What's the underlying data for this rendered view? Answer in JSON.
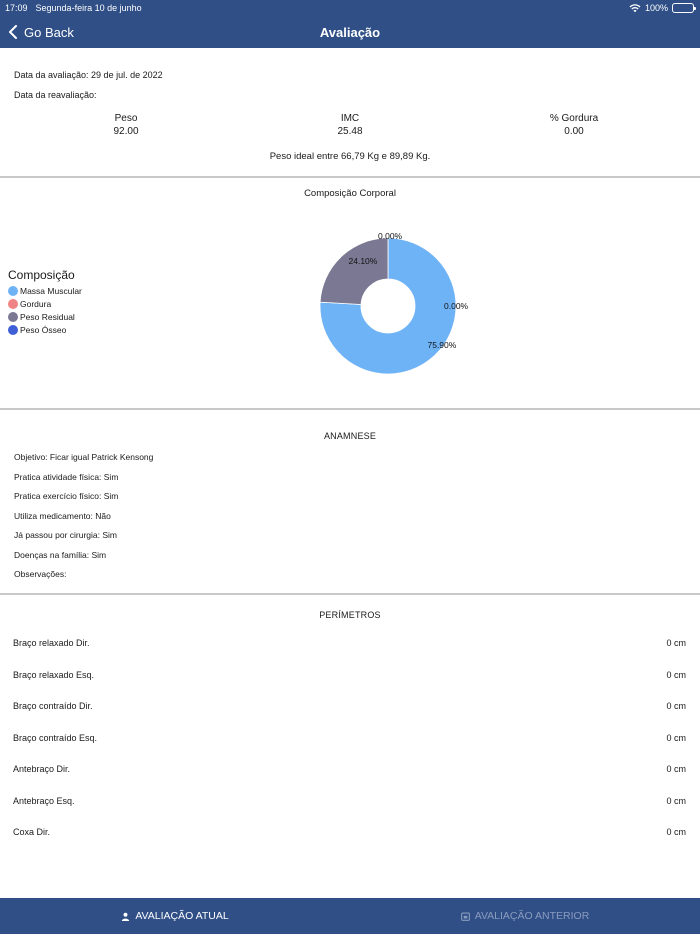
{
  "status_bar": {
    "time": "17:09",
    "date": "Segunda-feira 10 de junho",
    "battery": "100%"
  },
  "nav": {
    "back_label": "Go Back",
    "title": "Avaliação"
  },
  "summary": {
    "evaluation_date": "Data da avaliação: 29 de jul. de 2022",
    "reevaluation_date": "Data da reavaliação:",
    "metrics": [
      {
        "label": "Peso",
        "value": "92.00"
      },
      {
        "label": "IMC",
        "value": "25.48"
      },
      {
        "label": "% Gordura",
        "value": "0.00"
      }
    ],
    "ideal_weight": "Peso ideal entre 66,79 Kg e 89,89 Kg."
  },
  "composition": {
    "title": "Composição Corporal",
    "legend_title": "Composição",
    "legend": [
      {
        "label": "Massa Muscular",
        "color": "#6fb3f7"
      },
      {
        "label": "Gordura",
        "color": "#f08383"
      },
      {
        "label": "Peso Residual",
        "color": "#7a7892"
      },
      {
        "label": "Peso Ósseo",
        "color": "#3e5fd6"
      }
    ],
    "chart_data": {
      "type": "pie",
      "categories": [
        "Massa Muscular",
        "Gordura",
        "Peso Residual",
        "Peso Ósseo"
      ],
      "values": [
        75.9,
        0.0,
        24.1,
        0.0
      ],
      "labels": [
        "75.90%",
        "0.00%",
        "24.10%",
        "0.00%"
      ]
    }
  },
  "anamnese": {
    "title": "ANAMNESE",
    "items": [
      "Objetivo: Ficar igual Patrick Kensong",
      "Pratica atividade física: Sim",
      "Pratica exercício físico: Sim",
      "Utiliza medicamento: Não",
      "Já passou por cirurgia: Sim",
      "Doenças na família: Sim",
      "Observações:"
    ]
  },
  "perimetros": {
    "title": "PERÍMETROS",
    "rows": [
      {
        "label": "Braço relaxado Dir.",
        "value": "0 cm"
      },
      {
        "label": "Braço relaxado Esq.",
        "value": "0 cm"
      },
      {
        "label": "Braço contraído Dir.",
        "value": "0 cm"
      },
      {
        "label": "Braço contraído Esq.",
        "value": "0 cm"
      },
      {
        "label": "Antebraço Dir.",
        "value": "0 cm"
      },
      {
        "label": "Antebraço Esq.",
        "value": "0 cm"
      },
      {
        "label": "Coxa Dir.",
        "value": "0 cm"
      }
    ]
  },
  "tabs": [
    {
      "label": "AVALIAÇÃO ATUAL",
      "icon": "person-icon",
      "active": true
    },
    {
      "label": "AVALIAÇÃO ANTERIOR",
      "icon": "calendar-icon",
      "active": false
    }
  ]
}
